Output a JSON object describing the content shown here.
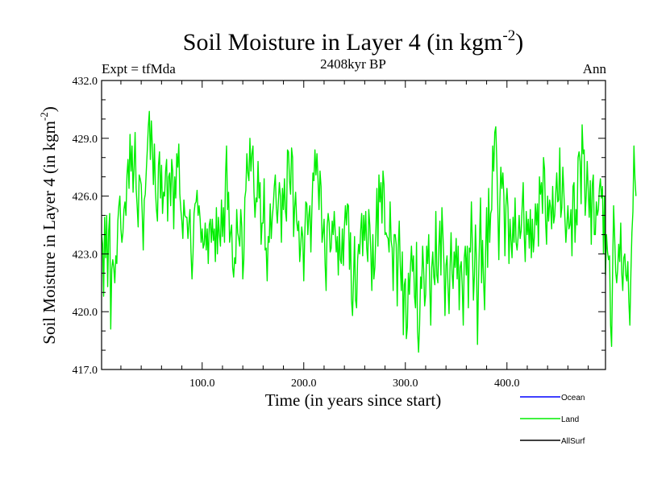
{
  "chart_data": {
    "type": "line",
    "title": "Soil Moisture in Layer 4 (in kgm",
    "title_superscript": "-2",
    "title_suffix": ")",
    "subtitle_left": "Expt = tfMda",
    "subtitle_center": "2408kyr BP",
    "subtitle_right": "Ann",
    "xlabel": "Time (in years since start)",
    "ylabel": "Soil Moisture in Layer 4 (in kgm",
    "ylabel_superscript": "-2",
    "ylabel_suffix": ")",
    "xlim": [
      1,
      497
    ],
    "ylim": [
      417.0,
      432.0
    ],
    "xticks": [
      100,
      200,
      300,
      400
    ],
    "xtick_labels": [
      "100.0",
      "200.0",
      "300.0",
      "400.0"
    ],
    "yticks": [
      417,
      420,
      423,
      426,
      429,
      432
    ],
    "ytick_labels": [
      "417.0",
      "420.0",
      "423.0",
      "426.0",
      "429.0",
      "432.0"
    ],
    "legend": [
      {
        "name": "Ocean",
        "color": "#0000ff"
      },
      {
        "name": "Land",
        "color": "#00ee00"
      },
      {
        "name": "AllSurf",
        "color": "#000000"
      }
    ],
    "series": [
      {
        "name": "Land",
        "color": "#00ee00",
        "x_start": 1,
        "x_step": 1,
        "values": [
          424.0,
          423.5,
          420.8,
          424.9,
          422.8,
          425.0,
          421.3,
          424.2,
          425.1,
          419.1,
          422.2,
          422.7,
          422.3,
          421.5,
          422.9,
          422.5,
          424.7,
          425.5,
          426.0,
          424.3,
          423.6,
          424.1,
          425.3,
          425.7,
          425.0,
          427.1,
          427.9,
          426.4,
          429.2,
          427.3,
          428.6,
          426.2,
          427.5,
          429.3,
          426.4,
          425.5,
          424.4,
          427.1,
          426.9,
          426.6,
          425.1,
          423.2,
          425.8,
          426.1,
          427.3,
          428.4,
          429.6,
          430.4,
          427.9,
          429.9,
          428.5,
          426.6,
          428.7,
          426.3,
          425.3,
          424.7,
          427.6,
          428.3,
          425.9,
          427.6,
          425.1,
          426.2,
          426.0,
          427.3,
          427.9,
          424.7,
          427.0,
          427.2,
          425.5,
          427.9,
          427.3,
          424.3,
          427.0,
          425.9,
          428.2,
          427.5,
          428.7,
          426.1,
          425.3,
          424.7,
          423.8,
          425.8,
          425.0,
          424.9,
          424.9,
          423.8,
          424.6,
          425.3,
          423.1,
          421.7,
          423.0,
          425.1,
          425.6,
          425.7,
          426.3,
          425.0,
          425.5,
          424.8,
          423.6,
          424.3,
          423.3,
          423.5,
          424.6,
          423.2,
          424.3,
          422.5,
          424.5,
          424.8,
          423.6,
          424.8,
          423.7,
          424.3,
          422.6,
          425.4,
          423.0,
          424.9,
          424.0,
          423.4,
          425.8,
          423.9,
          425.4,
          423.6,
          427.1,
          428.6,
          425.3,
          426.2,
          423.6,
          424.1,
          424.5,
          422.3,
          421.8,
          422.8,
          422.5,
          425.3,
          424.1,
          423.8,
          423.4,
          425.3,
          424.4,
          421.7,
          422.7,
          425.9,
          426.3,
          428.2,
          427.2,
          426.8,
          429.0,
          427.3,
          428.2,
          428.6,
          426.2,
          424.9,
          425.9,
          425.7,
          427.8,
          425.9,
          426.7,
          423.5,
          424.6,
          424.6,
          426.9,
          423.2,
          423.3,
          421.6,
          423.9,
          423.6,
          425.6,
          423.8,
          424.9,
          425.5,
          426.5,
          427.1,
          425.4,
          424.6,
          425.7,
          426.7,
          426.0,
          423.6,
          426.4,
          425.3,
          426.9,
          425.2,
          424.7,
          428.4,
          428.3,
          426.8,
          426.1,
          428.5,
          428.0,
          423.9,
          425.4,
          426.2,
          424.7,
          424.2,
          424.7,
          422.6,
          423.4,
          424.4,
          423.9,
          421.6,
          424.0,
          425.7,
          425.6,
          424.0,
          425.0,
          425.5,
          423.1,
          425.3,
          427.2,
          426.8,
          428.4,
          427.1,
          428.2,
          426.9,
          425.3,
          427.3,
          426.5,
          423.6,
          424.1,
          424.8,
          422.5,
          421.1,
          424.4,
          425.1,
          424.6,
          423.1,
          423.3,
          424.7,
          424.0,
          425.2,
          424.1,
          423.1,
          423.9,
          421.9,
          424.4,
          422.7,
          422.5,
          424.3,
          422.4,
          424.4,
          425.5,
          424.5,
          425.6,
          425.5,
          422.2,
          424.1,
          420.6,
          419.8,
          421.7,
          423.9,
          420.6,
          420.2,
          422.7,
          423.5,
          423.0,
          424.2,
          425.1,
          422.9,
          425.0,
          423.7,
          425.2,
          423.3,
          422.6,
          425.3,
          424.5,
          423.1,
          421.1,
          424.0,
          421.7,
          422.3,
          424.1,
          426.4,
          423.4,
          427.1,
          425.7,
          426.7,
          424.6,
          427.3,
          426.6,
          424.0,
          424.1,
          423.9,
          423.8,
          423.1,
          425.7,
          423.7,
          423.3,
          421.1,
          424.0,
          424.0,
          423.5,
          420.3,
          423.3,
          424.7,
          422.4,
          421.1,
          423.1,
          418.8,
          421.4,
          421.7,
          418.6,
          419.2,
          422.0,
          420.9,
          422.3,
          423.4,
          422.1,
          422.9,
          420.8,
          420.2,
          423.6,
          419.0,
          417.9,
          419.3,
          421.8,
          421.2,
          423.4,
          422.2,
          420.3,
          420.9,
          423.4,
          422.5,
          424.0,
          421.4,
          419.3,
          422.3,
          423.1,
          421.8,
          421.4,
          425.2,
          421.9,
          421.5,
          423.4,
          424.7,
          421.9,
          425.4,
          424.0,
          422.5,
          419.8,
          422.4,
          422.9,
          421.3,
          419.9,
          422.3,
          424.1,
          422.0,
          421.2,
          423.1,
          422.3,
          423.8,
          421.7,
          423.4,
          420.1,
          422.3,
          422.6,
          421.3,
          419.3,
          422.8,
          423.4,
          421.9,
          423.4,
          420.2,
          423.3,
          423.1,
          425.7,
          423.3,
          420.6,
          421.9,
          424.5,
          422.6,
          418.3,
          421.5,
          423.7,
          425.9,
          421.5,
          423.7,
          421.6,
          420.1,
          423.1,
          425.4,
          422.3,
          426.4,
          423.6,
          425.1,
          425.3,
          428.6,
          427.3,
          429.3,
          429.6,
          427.8,
          425.4,
          422.7,
          425.7,
          427.5,
          426.4,
          427.2,
          426.0,
          422.9,
          425.5,
          426.4,
          425.4,
          422.5,
          424.8,
          423.7,
          422.8,
          424.9,
          423.6,
          425.9,
          423.6,
          423.2,
          423.9,
          425.0,
          423.8,
          424.2,
          425.5,
          426.7,
          424.0,
          422.6,
          425.2,
          424.0,
          424.8,
          423.3,
          425.3,
          422.8,
          424.8,
          423.1,
          423.9,
          425.6,
          424.5,
          425.6,
          423.4,
          427.0,
          426.1,
          426.7,
          425.1,
          428.0,
          427.4,
          424.7,
          423.5,
          426.0,
          424.7,
          425.8,
          425.4,
          424.3,
          426.5,
          424.6,
          425.0,
          426.1,
          427.2,
          425.7,
          425.8,
          428.5,
          424.9,
          425.4,
          427.5,
          426.2,
          424.9,
          423.6,
          424.5,
          425.5,
          424.3,
          424.5,
          425.3,
          422.9,
          426.5,
          426.7,
          423.6,
          425.3,
          424.5,
          428.0,
          428.3,
          427.8,
          425.6,
          429.7,
          428.2,
          428.4,
          425.0,
          426.0,
          427.8,
          426.3,
          424.9,
          426.8,
          423.5,
          426.6,
          427.1,
          424.0,
          424.0,
          425.7,
          425.0,
          425.3,
          426.4,
          426.9,
          425.9,
          426.5,
          423.0,
          426.0,
          421.9,
          424.0,
          423.1,
          422.7,
          422.9,
          419.3,
          418.2,
          422.1,
          425.5,
          423.9,
          422.1,
          421.5,
          422.2,
          423.5,
          422.6,
          424.6,
          422.0,
          421.1,
          422.8,
          423.0,
          421.9,
          421.6,
          422.6,
          420.5,
          419.3,
          422.0,
          424.1,
          425.2,
          428.6,
          426.9,
          426.0
        ]
      }
    ]
  }
}
